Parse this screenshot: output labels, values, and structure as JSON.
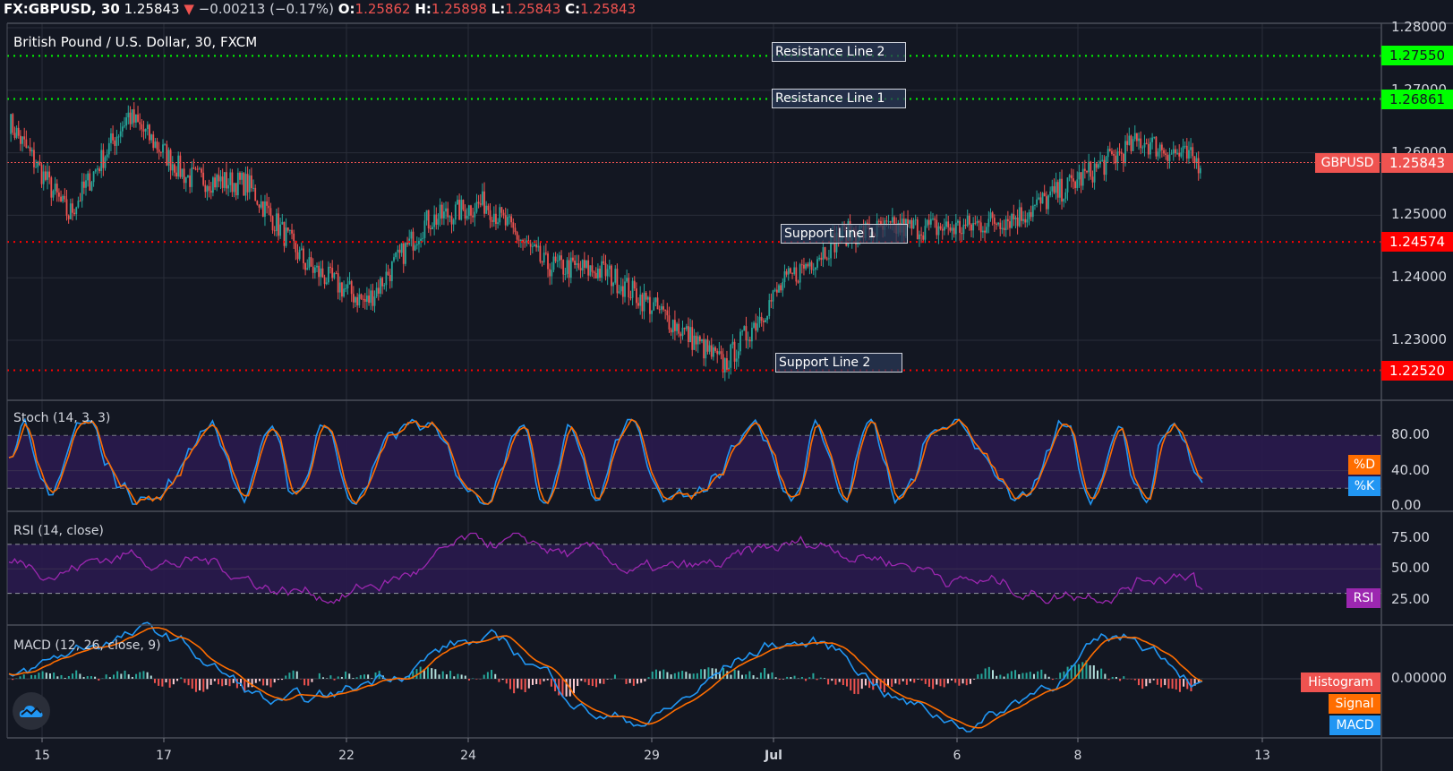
{
  "header": {
    "symbol": "FX:GBPUSD, 30",
    "last": "1.25843",
    "arrow": "▼",
    "change": "−0.00213 (−0.17%)",
    "o_label": "O:",
    "o": "1.25862",
    "h_label": "H:",
    "h": "1.25898",
    "l_label": "L:",
    "l": "1.25843",
    "c_label": "C:",
    "c": "1.25843"
  },
  "main_pane": {
    "title": "British Pound / U.S. Dollar, 30, FXCM",
    "price_axis": [
      "1.28000",
      "1.27000",
      "1.26000",
      "1.25000",
      "1.24000",
      "1.23000"
    ],
    "price_tag": {
      "symbol": "GBPUSD",
      "value": "1.25843",
      "color": "#ef5350"
    },
    "lines": [
      {
        "label": "Resistance Line 2",
        "value": "1.27550",
        "color": "#00ff00"
      },
      {
        "label": "Resistance Line 1",
        "value": "1.26861",
        "color": "#00ff00"
      },
      {
        "label": "Support Line 1",
        "value": "1.24574",
        "color": "#ff0000"
      },
      {
        "label": "Support Line 2",
        "value": "1.22520",
        "color": "#ff0000"
      }
    ]
  },
  "stoch_pane": {
    "title": "Stoch (14, 3, 3)",
    "axis": [
      "80.00",
      "40.00",
      "0.00"
    ],
    "tags": {
      "d": "%D",
      "k": "%K"
    }
  },
  "rsi_pane": {
    "title": "RSI (14, close)",
    "axis": [
      "75.00",
      "50.00",
      "25.00"
    ],
    "tag": "RSI"
  },
  "macd_pane": {
    "title": "MACD (12, 26, close, 9)",
    "axis": [
      "0.00000"
    ],
    "tags": {
      "histogram": "Histogram",
      "signal": "Signal",
      "macd": "MACD"
    }
  },
  "time_axis": [
    "15",
    "17",
    "22",
    "24",
    "29",
    "Jul",
    "6",
    "8",
    "13"
  ],
  "colors": {
    "background": "#131722",
    "up": "#26a69a",
    "down": "#ef5350",
    "stoch_k": "#2196f3",
    "stoch_d": "#ff6d00",
    "rsi": "#9c27b0",
    "macd": "#2196f3",
    "signal": "#ff6d00"
  },
  "chart_data": [
    {
      "type": "candlestick",
      "title": "British Pound / U.S. Dollar, 30, FXCM",
      "x": [
        "15",
        "17",
        "22",
        "24",
        "29",
        "Jul",
        "6",
        "8",
        "13"
      ],
      "ylim": [
        1.221,
        1.281
      ],
      "approx_close_path": [
        {
          "x": "Jun 12",
          "y": 1.265
        },
        {
          "x": "Jun 15",
          "y": 1.25
        },
        {
          "x": "Jun 16",
          "y": 1.266
        },
        {
          "x": "Jun 17",
          "y": 1.256
        },
        {
          "x": "Jun 18",
          "y": 1.255
        },
        {
          "x": "Jun 19",
          "y": 1.242
        },
        {
          "x": "Jun 22",
          "y": 1.236
        },
        {
          "x": "Jun 23",
          "y": 1.249
        },
        {
          "x": "Jun 24",
          "y": 1.252
        },
        {
          "x": "Jun 25",
          "y": 1.242
        },
        {
          "x": "Jun 26",
          "y": 1.241
        },
        {
          "x": "Jun 29",
          "y": 1.234
        },
        {
          "x": "Jun 30",
          "y": 1.226
        },
        {
          "x": "Jul 1",
          "y": 1.239
        },
        {
          "x": "Jul 2",
          "y": 1.247
        },
        {
          "x": "Jul 3",
          "y": 1.248
        },
        {
          "x": "Jul 6",
          "y": 1.248
        },
        {
          "x": "Jul 7",
          "y": 1.25
        },
        {
          "x": "Jul 8",
          "y": 1.256
        },
        {
          "x": "Jul 9",
          "y": 1.262
        },
        {
          "x": "Jul 10",
          "y": 1.2584
        }
      ],
      "horizontal_lines": [
        {
          "label": "Resistance Line 2",
          "y": 1.2755
        },
        {
          "label": "Resistance Line 1",
          "y": 1.26861
        },
        {
          "label": "Support Line 1",
          "y": 1.24574
        },
        {
          "label": "Support Line 2",
          "y": 1.2252
        },
        {
          "label": "GBPUSD",
          "y": 1.25843
        }
      ]
    },
    {
      "type": "line",
      "title": "Stoch (14, 3, 3)",
      "ylim": [
        0,
        100
      ],
      "bands": [
        20,
        80
      ],
      "series": [
        {
          "name": "%K"
        },
        {
          "name": "%D"
        }
      ],
      "last_values": {
        "%K": 25,
        "%D": 27
      }
    },
    {
      "type": "line",
      "title": "RSI (14, close)",
      "ylim": [
        20,
        80
      ],
      "bands": [
        30,
        70
      ],
      "series": [
        {
          "name": "RSI"
        }
      ],
      "last_value": 33
    },
    {
      "type": "line",
      "title": "MACD (12, 26, close, 9)",
      "series": [
        {
          "name": "MACD"
        },
        {
          "name": "Signal"
        },
        {
          "name": "Histogram"
        }
      ],
      "zero_line": 0.0
    }
  ]
}
